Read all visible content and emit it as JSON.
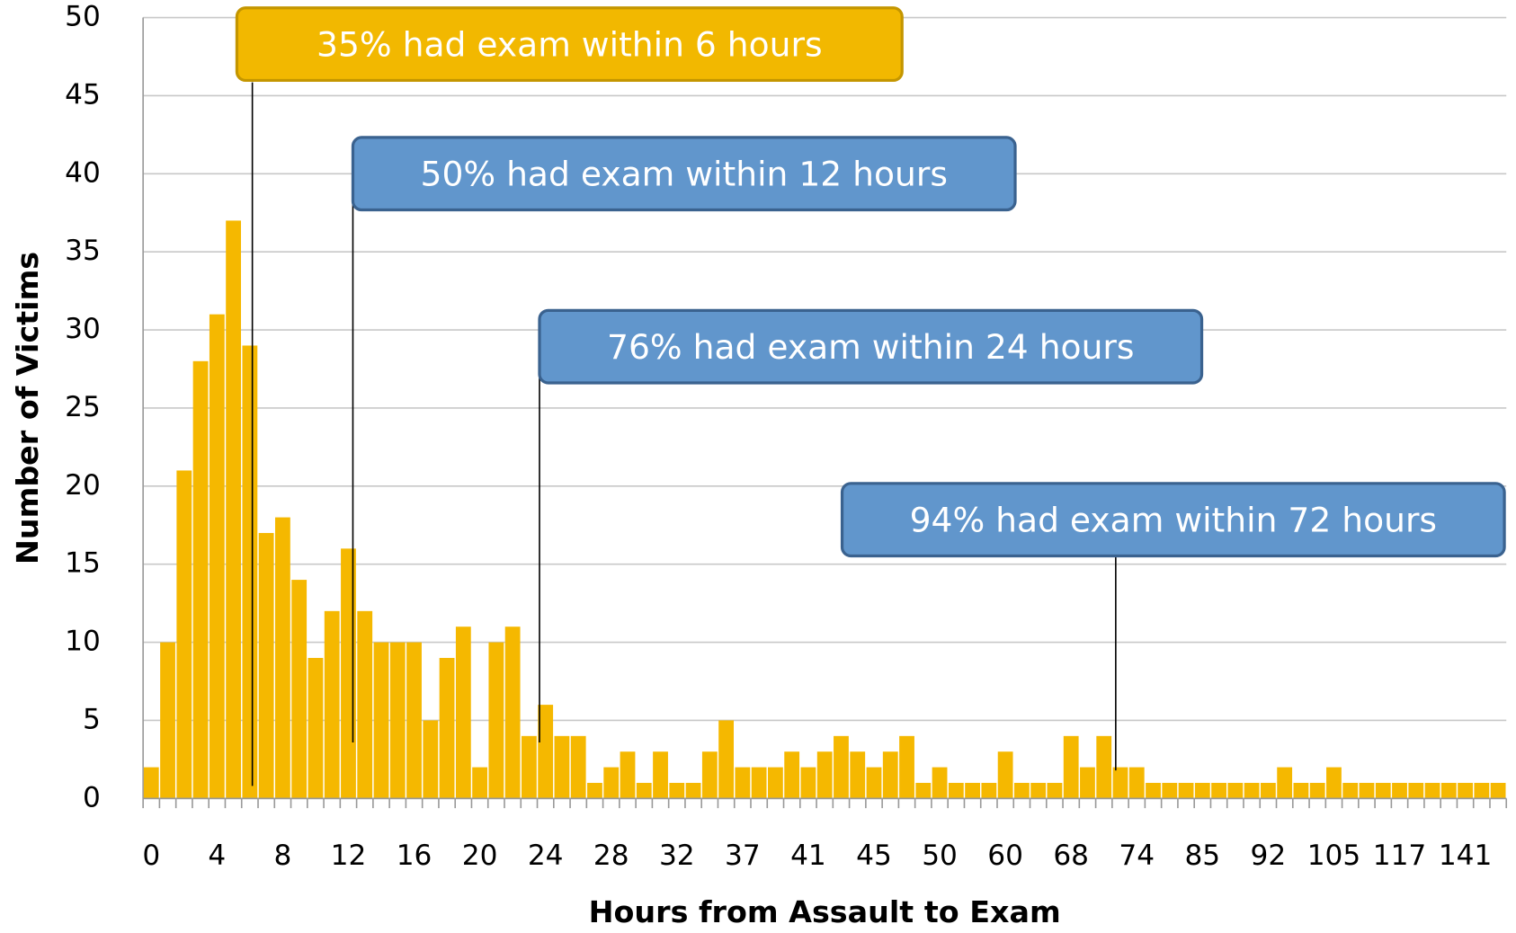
{
  "chart_data": {
    "type": "bar",
    "x_label": "Hours from Assault to Exam",
    "y_label": "Number of Victims",
    "categories": [
      "0",
      null,
      null,
      null,
      "4",
      null,
      null,
      null,
      "8",
      null,
      null,
      null,
      "12",
      null,
      null,
      null,
      "16",
      null,
      null,
      null,
      "20",
      null,
      null,
      null,
      "24",
      null,
      null,
      null,
      "28",
      null,
      null,
      null,
      "32",
      null,
      null,
      null,
      "37",
      null,
      null,
      null,
      "41",
      null,
      null,
      null,
      "45",
      null,
      null,
      null,
      "50",
      null,
      null,
      null,
      "60",
      null,
      null,
      null,
      "68",
      null,
      null,
      null,
      "74",
      null,
      null,
      null,
      "85",
      null,
      null,
      null,
      "92",
      null,
      null,
      null,
      "105",
      null,
      null,
      null,
      "117",
      null,
      null,
      null,
      "141",
      null,
      null
    ],
    "values": [
      2,
      10,
      21,
      28,
      31,
      37,
      29,
      17,
      18,
      14,
      9,
      12,
      16,
      12,
      10,
      10,
      10,
      5,
      9,
      11,
      2,
      10,
      11,
      4,
      6,
      4,
      4,
      1,
      2,
      3,
      1,
      3,
      1,
      1,
      3,
      5,
      2,
      2,
      2,
      3,
      2,
      3,
      4,
      3,
      2,
      3,
      4,
      1,
      2,
      1,
      1,
      1,
      3,
      1,
      1,
      1,
      4,
      2,
      4,
      2,
      2,
      1,
      1,
      1,
      1,
      1,
      1,
      1,
      1,
      2,
      1,
      1,
      2,
      1,
      1,
      1,
      1,
      1,
      1,
      1,
      1,
      1,
      1
    ],
    "color": "#f5b800",
    "ylim": [
      0,
      50
    ],
    "yticks": [
      0,
      5,
      10,
      15,
      20,
      25,
      30,
      35,
      40,
      45,
      50
    ],
    "grid": true,
    "annotations": [
      {
        "text": "35% had exam within 6 hours",
        "color": "#f2b800"
      },
      {
        "text": "50% had exam within 12 hours",
        "color": "#6196cc"
      },
      {
        "text": "76% had exam within 24 hours",
        "color": "#6196cc"
      },
      {
        "text": "94% had exam within 72 hours",
        "color": "#6196cc"
      }
    ]
  }
}
